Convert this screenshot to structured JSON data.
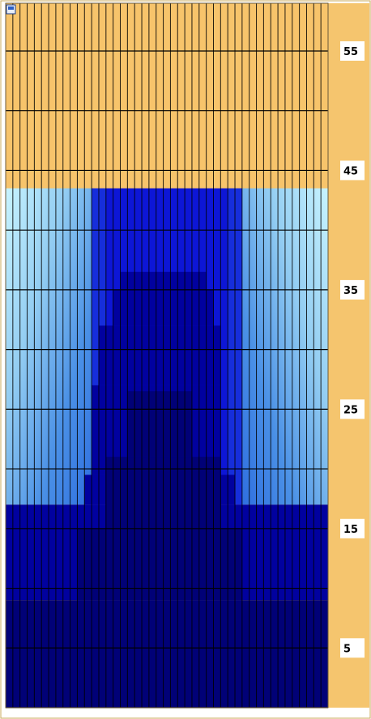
{
  "colors": {
    "background_sand": "#f7c46b",
    "frame_sand": "#f5c56e",
    "grid_line": "#000000",
    "label_box": "#ffffff",
    "water_deep": "#010177",
    "water_dark": "#01019f",
    "water_mid": "#0d16d6",
    "water_light": "#3e8ae2",
    "water_pale": "#a6e4f8"
  },
  "icons": {
    "corner": "window-corner-icon"
  },
  "chart_data": {
    "type": "heatmap",
    "title": "",
    "xlabel": "",
    "ylabel": "",
    "ylim": [
      0,
      59
    ],
    "y_ticks": [
      5,
      15,
      25,
      35,
      45,
      55
    ],
    "y_tick_labels": [
      "5",
      "15",
      "25",
      "35",
      "45",
      "55"
    ],
    "column_count": 45,
    "grid_rows": 59,
    "legend": "none",
    "grid": true,
    "series": [
      {
        "level": 4,
        "color": "#010177",
        "regions": [
          {
            "x_range": [
              0,
              45
            ],
            "y_range": [
              0,
              9
            ]
          },
          {
            "x_range": [
              10,
              33
            ],
            "y_range": [
              9,
              15
            ]
          },
          {
            "x_range": [
              14,
              30
            ],
            "y_range": [
              15,
              21
            ]
          },
          {
            "x_range": [
              17,
              26
            ],
            "y_range": [
              21,
              26.5
            ]
          }
        ]
      },
      {
        "level": 3,
        "color": "#01019f",
        "regions": [
          {
            "x_range": [
              0,
              45
            ],
            "y_range": [
              9,
              17
            ]
          },
          {
            "x_range": [
              11,
              32
            ],
            "y_range": [
              17,
              19.5
            ]
          },
          {
            "x_range": [
              12,
              30
            ],
            "y_range": [
              19.5,
              27
            ]
          },
          {
            "x_range": [
              13,
              30
            ],
            "y_range": [
              27,
              32
            ]
          },
          {
            "x_range": [
              15,
              29
            ],
            "y_range": [
              32,
              35
            ]
          },
          {
            "x_range": [
              16,
              28
            ],
            "y_range": [
              35,
              36.5
            ]
          }
        ]
      },
      {
        "level": 2,
        "color": "#0d16d6",
        "regions": [
          {
            "x_range": [
              12,
              33
            ],
            "y_range": [
              17,
              43.5
            ]
          }
        ]
      },
      {
        "level": 1,
        "color": "#3e8ae2",
        "regions": [
          {
            "x_range": [
              0,
              45
            ],
            "y_range": [
              17,
              43.5
            ]
          }
        ]
      },
      {
        "level": 0,
        "color": "#a6e4f8",
        "regions": [
          {
            "x_range": [
              0,
              45
            ],
            "y_range": [
              17,
              43.5
            ]
          }
        ]
      }
    ]
  }
}
